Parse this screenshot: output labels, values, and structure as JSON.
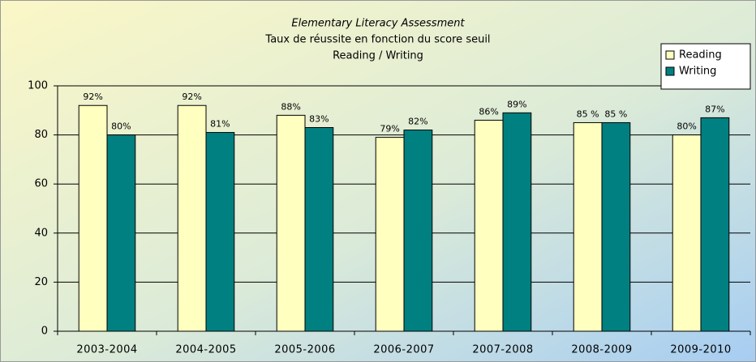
{
  "chart_data": {
    "type": "bar",
    "title": "Elementary Literacy Assessment",
    "subtitle": [
      "Taux de réussite en fonction du score seuil",
      "Reading / Writing"
    ],
    "categories": [
      "2003-2004",
      "2004-2005",
      "2005-2006",
      "2006-2007",
      "2007-2008",
      "2008-2009",
      "2009-2010"
    ],
    "series": [
      {
        "name": "Reading",
        "color": "#ffffc0",
        "values": [
          92,
          92,
          88,
          79,
          86,
          85,
          80
        ],
        "value_labels": [
          "92%",
          "92%",
          "88%",
          "79%",
          "86%",
          "85 %",
          "80%"
        ]
      },
      {
        "name": "Writing",
        "color": "#008080",
        "values": [
          80,
          81,
          83,
          82,
          89,
          85,
          87
        ],
        "value_labels": [
          "80%",
          "81%",
          "83%",
          "82%",
          "89%",
          "85 %",
          "87%"
        ]
      }
    ],
    "ylim": [
      0,
      100
    ],
    "yticks": [
      0,
      20,
      40,
      60,
      80,
      100
    ],
    "grid": true,
    "legend": "upper right"
  }
}
